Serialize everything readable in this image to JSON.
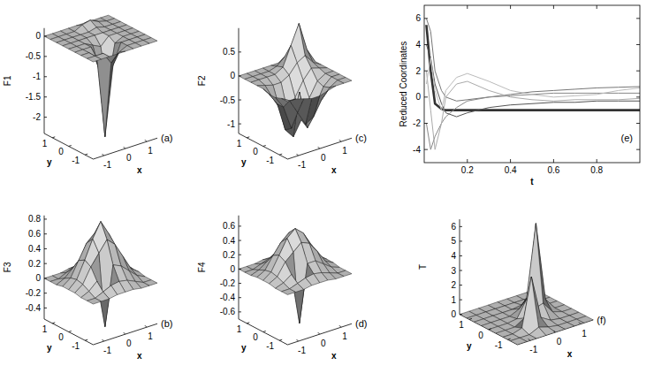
{
  "chart_data": [
    {
      "type": "surface",
      "annotations": [
        "(a)"
      ],
      "xlabel": "x",
      "ylabel": "y",
      "zlabel": "F1",
      "x": [
        -1.5,
        -1.125,
        -0.75,
        -0.375,
        0,
        0.375,
        0.75,
        1.125,
        1.5
      ],
      "y": [
        -1.5,
        -1.125,
        -0.75,
        -0.375,
        0,
        0.375,
        0.75,
        1.125,
        1.5
      ],
      "z": [
        [
          0,
          0,
          0,
          0,
          0,
          0,
          0,
          0,
          0
        ],
        [
          0,
          0,
          0,
          -0.3,
          -0.1,
          0,
          0,
          0,
          0
        ],
        [
          0,
          0,
          -0.2,
          -2.2,
          -0.5,
          0,
          0,
          0,
          0
        ],
        [
          0,
          0,
          0,
          -0.6,
          -1.2,
          -0.1,
          0,
          0,
          0
        ],
        [
          0,
          0,
          0,
          -0.1,
          -0.2,
          0,
          0,
          0,
          0
        ],
        [
          0,
          0,
          0,
          0,
          0,
          0,
          0,
          0,
          0
        ],
        [
          0,
          0,
          0,
          0,
          0,
          0.05,
          0,
          0,
          0
        ],
        [
          0,
          0,
          0,
          0,
          0.1,
          0.15,
          0.05,
          0,
          0
        ],
        [
          0,
          0,
          0,
          0,
          0,
          0,
          0,
          0,
          0
        ]
      ],
      "xlim": [
        -1.5,
        1.5
      ],
      "ylim": [
        -1.5,
        1.5
      ],
      "zlim": [
        -2.4,
        0.2
      ],
      "xticks": [
        -1,
        0,
        1
      ],
      "yticks": [
        -1,
        0,
        1
      ],
      "zticks": [
        -2,
        -1.5,
        -1,
        -0.5,
        0
      ]
    },
    {
      "type": "surface",
      "annotations": [
        "(b)"
      ],
      "xlabel": "x",
      "ylabel": "y",
      "zlabel": "F3",
      "x": [
        -1.5,
        -1.125,
        -0.75,
        -0.375,
        0,
        0.375,
        0.75,
        1.125,
        1.5
      ],
      "y": [
        -1.5,
        -1.125,
        -0.75,
        -0.375,
        0,
        0.375,
        0.75,
        1.125,
        1.5
      ],
      "z": [
        [
          0,
          0,
          0,
          0.02,
          0.02,
          0.02,
          0,
          0,
          0
        ],
        [
          0,
          0,
          0.05,
          0.1,
          0.12,
          0.1,
          0.05,
          0,
          0
        ],
        [
          0,
          0.05,
          0.15,
          -0.5,
          0.3,
          0.25,
          0.15,
          0.05,
          0
        ],
        [
          0.02,
          0.1,
          0.3,
          0.45,
          0.6,
          0.5,
          0.3,
          0.1,
          0.02
        ],
        [
          0.02,
          0.12,
          0.35,
          0.6,
          0.8,
          0.6,
          0.35,
          0.12,
          0.02
        ],
        [
          0.02,
          0.1,
          0.3,
          0.5,
          0.6,
          0.5,
          0.3,
          0.1,
          0.02
        ],
        [
          0,
          0.05,
          0.15,
          0.25,
          0.3,
          0.25,
          0.15,
          0.05,
          0
        ],
        [
          0,
          0,
          0.05,
          0.1,
          0.12,
          0.1,
          0.05,
          0,
          0
        ],
        [
          0,
          0,
          0,
          0.02,
          0.02,
          0.02,
          0,
          0,
          0
        ]
      ],
      "xlim": [
        -1.5,
        1.5
      ],
      "ylim": [
        -1.5,
        1.5
      ],
      "zlim": [
        -0.55,
        0.85
      ],
      "xticks": [
        -1,
        0,
        1
      ],
      "yticks": [
        -1,
        0,
        1
      ],
      "zticks": [
        -0.4,
        -0.2,
        0,
        0.2,
        0.4,
        0.6,
        0.8
      ]
    },
    {
      "type": "surface",
      "annotations": [
        "(c)"
      ],
      "xlabel": "x",
      "ylabel": "y",
      "zlabel": "F2",
      "x": [
        -1.5,
        -1.125,
        -0.75,
        -0.375,
        0,
        0.375,
        0.75,
        1.125,
        1.5
      ],
      "y": [
        -1.5,
        -1.125,
        -0.75,
        -0.375,
        0,
        0.375,
        0.75,
        1.125,
        1.5
      ],
      "z": [
        [
          0,
          0,
          -0.05,
          -0.1,
          -0.1,
          -0.05,
          0,
          0,
          0
        ],
        [
          0,
          -0.1,
          -0.4,
          -0.7,
          -0.6,
          -0.3,
          -0.1,
          0,
          0
        ],
        [
          -0.05,
          -0.3,
          -0.8,
          -0.1,
          -0.9,
          -0.5,
          -0.15,
          0,
          0
        ],
        [
          -0.05,
          -0.3,
          -0.9,
          -1.1,
          -0.8,
          -0.4,
          -0.1,
          0,
          0
        ],
        [
          0,
          -0.2,
          -0.5,
          -0.6,
          -0.4,
          -0.1,
          0.1,
          0.05,
          0
        ],
        [
          0,
          -0.05,
          -0.1,
          -0.1,
          0,
          0.2,
          0.3,
          0.1,
          0
        ],
        [
          0,
          0,
          0,
          0,
          0.1,
          0.5,
          0.9,
          0.3,
          0
        ],
        [
          0,
          0,
          0,
          0,
          0.05,
          0.2,
          0.3,
          0.1,
          0
        ],
        [
          0,
          0,
          0,
          0,
          0,
          0,
          0,
          0,
          0
        ]
      ],
      "xlim": [
        -1.5,
        1.5
      ],
      "ylim": [
        -1.5,
        1.5
      ],
      "zlim": [
        -1.2,
        1
      ],
      "xticks": [
        -1,
        0,
        1
      ],
      "yticks": [
        -1,
        0,
        1
      ],
      "zticks": [
        -1,
        -0.5,
        0,
        0.5
      ]
    },
    {
      "type": "surface",
      "annotations": [
        "(d)"
      ],
      "xlabel": "x",
      "ylabel": "y",
      "zlabel": "F4",
      "x": [
        -1.5,
        -1.125,
        -0.75,
        -0.375,
        0,
        0.375,
        0.75,
        1.125,
        1.5
      ],
      "y": [
        -1.5,
        -1.125,
        -0.75,
        -0.375,
        0,
        0.375,
        0.75,
        1.125,
        1.5
      ],
      "z": [
        [
          0,
          0,
          0,
          0.02,
          0.02,
          0.02,
          0,
          0,
          0
        ],
        [
          0,
          0,
          0.04,
          0.08,
          0.1,
          0.08,
          0.04,
          0,
          0
        ],
        [
          0,
          0.04,
          0.12,
          -0.6,
          0.2,
          0.2,
          0.12,
          0.04,
          0
        ],
        [
          0.02,
          0.08,
          0.25,
          0.35,
          0.45,
          0.4,
          0.25,
          0.08,
          0.02
        ],
        [
          0.02,
          0.1,
          0.3,
          0.5,
          0.6,
          0.5,
          0.3,
          0.1,
          0.02
        ],
        [
          0.02,
          0.08,
          0.25,
          0.4,
          0.5,
          0.4,
          0.25,
          0.08,
          0.02
        ],
        [
          0,
          0.04,
          0.12,
          0.2,
          0.25,
          0.2,
          0.12,
          0.04,
          0
        ],
        [
          0,
          0,
          0.04,
          0.08,
          0.1,
          0.08,
          0.04,
          0,
          0
        ],
        [
          0,
          0,
          0,
          0.02,
          0.02,
          0.02,
          0,
          0,
          0
        ]
      ],
      "xlim": [
        -1.5,
        1.5
      ],
      "ylim": [
        -1.5,
        1.5
      ],
      "zlim": [
        -0.7,
        0.75
      ],
      "xticks": [
        -1,
        0,
        1
      ],
      "yticks": [
        -1,
        0,
        1
      ],
      "zticks": [
        -0.6,
        -0.4,
        -0.2,
        0,
        0.2,
        0.4,
        0.6
      ]
    },
    {
      "type": "line",
      "annotations": [
        "(e)"
      ],
      "xlabel": "t",
      "ylabel": "Reduced Coordinates",
      "x": [
        0.01,
        0.03,
        0.05,
        0.08,
        0.1,
        0.15,
        0.2,
        0.3,
        0.4,
        0.5,
        0.6,
        0.7,
        0.8,
        0.9,
        1
      ],
      "series": [
        {
          "color": "#333333",
          "line_style": "thick",
          "values": [
            5.5,
            2,
            -0.5,
            -0.9,
            -1,
            -1,
            -1,
            -1,
            -1,
            -1,
            -1,
            -1,
            -1,
            -1,
            -1
          ]
        },
        {
          "color": "#555555",
          "line_style": "solid",
          "values": [
            4,
            3,
            1,
            -0.5,
            -1.2,
            -1.5,
            -1.2,
            -0.8,
            -0.6,
            -0.5,
            -0.4,
            -0.4,
            -0.3,
            -0.3,
            -0.3
          ]
        },
        {
          "color": "#777777",
          "line_style": "solid",
          "values": [
            6,
            5,
            2,
            0.5,
            0,
            -0.3,
            -0.2,
            0,
            0.2,
            0.4,
            0.5,
            0.6,
            0.7,
            0.75,
            0.8
          ]
        },
        {
          "color": "#888888",
          "line_style": "solid",
          "values": [
            -2,
            -4,
            -3,
            -2,
            -1.5,
            -0.8,
            -0.3,
            0,
            0.1,
            0.2,
            0.3,
            0.3,
            0.3,
            0.3,
            0.3
          ]
        },
        {
          "color": "#aaaaaa",
          "line_style": "solid",
          "values": [
            2,
            -1,
            -4,
            -2,
            0,
            1,
            1.2,
            0.5,
            0,
            -0.2,
            -0.3,
            -0.2,
            -0.2,
            -0.2,
            -0.1
          ]
        },
        {
          "color": "#bbbbbb",
          "line_style": "solid",
          "values": [
            1,
            3,
            0.5,
            -1,
            0.5,
            1.5,
            1.8,
            1.2,
            0.5,
            0.2,
            0,
            0.1,
            0.2,
            0.5,
            0.7
          ]
        }
      ],
      "xlim": [
        0,
        1
      ],
      "ylim": [
        -5,
        7
      ],
      "xticks": [
        0.2,
        0.4,
        0.6,
        0.8
      ],
      "yticks": [
        -4,
        -2,
        0,
        2,
        4,
        6
      ]
    },
    {
      "type": "surface",
      "annotations": [
        "(f)"
      ],
      "xlabel": "x",
      "ylabel": "y",
      "zlabel": "T",
      "x": [
        -1.5,
        -1.125,
        -0.75,
        -0.375,
        0,
        0.375,
        0.75,
        1.125,
        1.5
      ],
      "y": [
        -1.5,
        -1.125,
        -0.75,
        -0.375,
        0,
        0.375,
        0.75,
        1.125,
        1.5
      ],
      "z": [
        [
          0,
          0,
          0,
          0,
          0,
          0,
          0,
          0,
          0
        ],
        [
          0,
          0,
          0,
          0.3,
          0.1,
          0,
          0,
          0,
          0
        ],
        [
          0,
          0,
          0.2,
          3.5,
          0.5,
          0.1,
          0,
          0,
          0
        ],
        [
          0,
          0,
          0,
          0.4,
          0.8,
          1,
          0.2,
          0,
          0
        ],
        [
          0,
          0,
          0,
          0.1,
          1.2,
          6.2,
          0.8,
          0,
          0
        ],
        [
          0,
          0,
          0,
          0,
          0.3,
          1,
          0.3,
          0,
          0
        ],
        [
          0,
          0,
          0,
          0,
          0,
          0.1,
          0,
          0,
          0
        ],
        [
          0,
          0,
          0,
          0,
          0,
          0,
          0,
          0,
          0
        ],
        [
          0,
          0,
          0,
          0,
          0,
          0,
          0,
          0,
          0
        ]
      ],
      "xlim": [
        -1.5,
        1.5
      ],
      "ylim": [
        -1.5,
        1.5
      ],
      "zlim": [
        0,
        6.5
      ],
      "xticks": [
        -1,
        0,
        1
      ],
      "yticks": [
        -1,
        0,
        1
      ],
      "zticks": [
        0,
        1,
        2,
        3,
        4,
        5,
        6
      ]
    }
  ]
}
